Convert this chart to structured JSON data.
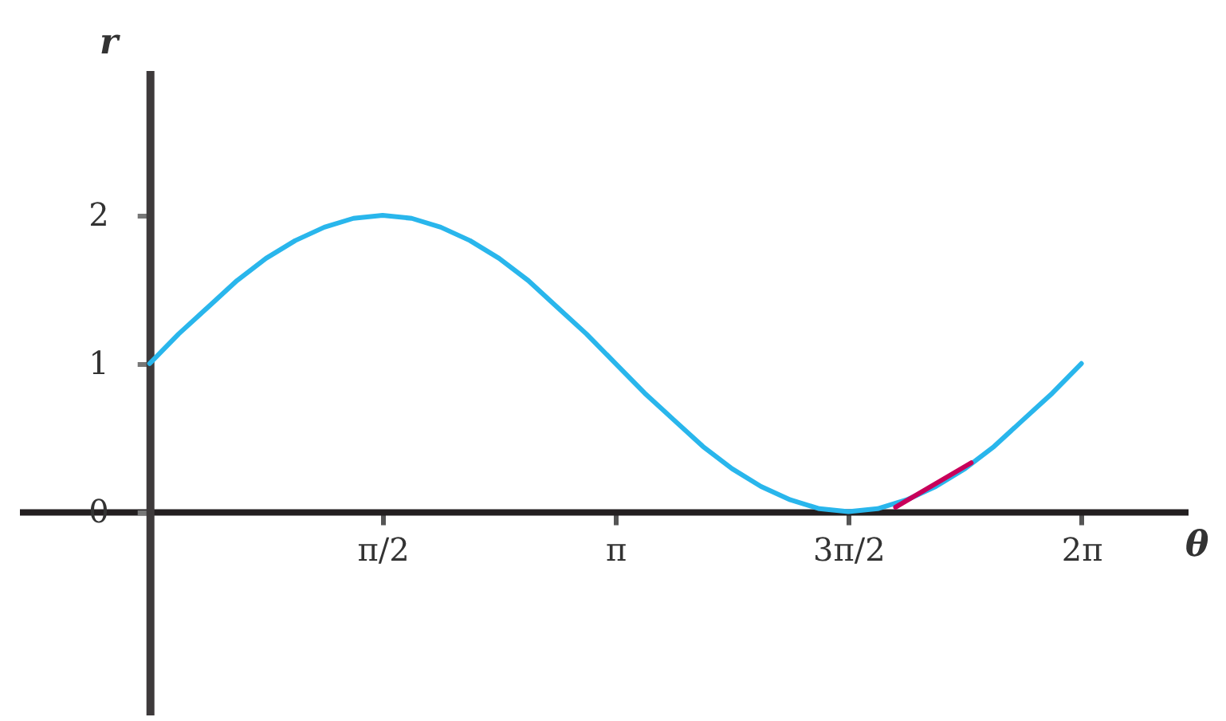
{
  "chart_data": {
    "type": "line",
    "xlabel": "θ",
    "ylabel": "r",
    "xlim": [
      -0.88,
      7.0
    ],
    "ylim": [
      -1.37,
      2.98
    ],
    "xticks": [
      {
        "value": 1.571,
        "label": "π/2"
      },
      {
        "value": 3.142,
        "label": "π"
      },
      {
        "value": 4.712,
        "label": "3π/2"
      },
      {
        "value": 6.283,
        "label": "2π"
      }
    ],
    "yticks": [
      0,
      1,
      2
    ],
    "marker": "none",
    "line_style": "solid",
    "series": [
      {
        "color": "#29b6ec",
        "x": [
          0,
          0.196,
          0.393,
          0.589,
          0.785,
          0.982,
          1.178,
          1.374,
          1.571,
          1.767,
          1.963,
          2.16,
          2.356,
          2.553,
          2.749,
          2.945,
          3.142,
          3.338,
          3.534,
          3.731,
          3.927,
          4.123,
          4.32,
          4.516,
          4.712,
          4.909,
          5.105,
          5.301,
          5.498,
          5.694,
          5.89,
          6.087,
          6.283
        ],
        "values": [
          1.0,
          1.2,
          1.38,
          1.56,
          1.71,
          1.83,
          1.92,
          1.98,
          2.0,
          1.98,
          1.92,
          1.83,
          1.71,
          1.56,
          1.38,
          1.2,
          1.0,
          0.8,
          0.62,
          0.44,
          0.29,
          0.17,
          0.08,
          0.02,
          0.0,
          0.02,
          0.08,
          0.17,
          0.29,
          0.44,
          0.62,
          0.8,
          1.0
        ]
      },
      {
        "color": "#c8005a",
        "x": [
          5.03,
          5.54
        ],
        "values": [
          0.03,
          0.33
        ]
      }
    ]
  }
}
